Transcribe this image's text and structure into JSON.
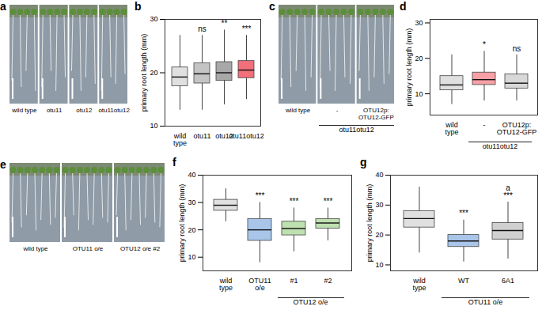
{
  "chart_data": [
    {
      "type": "image",
      "title": "a",
      "labels": [
        "wild type",
        "otu11",
        "otu12",
        "otu11otu12"
      ]
    },
    {
      "type": "box",
      "title": "b",
      "categories": [
        "wild type",
        "otu11",
        "otu12",
        "otu11otu12"
      ],
      "min": [
        13,
        13,
        14,
        15
      ],
      "q1": [
        17.5,
        18,
        18.5,
        19
      ],
      "median": [
        19.2,
        19.8,
        20,
        20.5
      ],
      "q3": [
        21,
        21.8,
        22,
        22.2
      ],
      "max": [
        27,
        27,
        28,
        27
      ],
      "colors": [
        "#e0e0e0",
        "#c4c4c4",
        "#a8a8a8",
        "#f2707a"
      ],
      "ylabel": "primary root length (mm)",
      "ylim": [
        10,
        30
      ],
      "yticks": [
        10,
        20,
        30
      ],
      "annotations": [
        {
          "category": "otu11",
          "text": "ns"
        },
        {
          "category": "otu12",
          "text": "**"
        },
        {
          "category": "otu11otu12",
          "text": "***"
        }
      ]
    },
    {
      "type": "image",
      "title": "c",
      "labels": [
        "wild type",
        "-",
        "OTU12p:OTU12-GFP"
      ],
      "groups": [
        {
          "label": "otu11otu12",
          "categories": [
            "-",
            "OTU12p:OTU12-GFP"
          ]
        }
      ]
    },
    {
      "type": "box",
      "title": "d",
      "categories": [
        "wild type",
        "-",
        "OTU12p:OTU12-GFP"
      ],
      "min": [
        7,
        8,
        8
      ],
      "q1": [
        11,
        12.5,
        11.5
      ],
      "median": [
        12.5,
        14,
        13
      ],
      "q3": [
        15,
        16,
        15.5
      ],
      "max": [
        21,
        22,
        21
      ],
      "colors": [
        "#e0e0e0",
        "#f7a0a6",
        "#d8d8d8"
      ],
      "ylabel": "primary root length (mm)",
      "ylim": [
        4,
        31
      ],
      "yticks": [
        10,
        20,
        30
      ],
      "groups": [
        {
          "label": "otu11otu12",
          "categories": [
            "-",
            "OTU12p:OTU12-GFP"
          ]
        }
      ],
      "annotations": [
        {
          "category": "-",
          "text": "*"
        },
        {
          "category": "OTU12p:OTU12-GFP",
          "text": "ns"
        }
      ]
    },
    {
      "type": "image",
      "title": "e",
      "labels": [
        "wild type",
        "OTU11 o/e",
        "OTU12 o/e #2"
      ]
    },
    {
      "type": "box",
      "title": "f",
      "categories": [
        "wild type",
        "OTU11 o/e",
        "#1",
        "#2"
      ],
      "min": [
        23,
        8,
        12,
        16
      ],
      "q1": [
        27,
        16,
        18,
        20.5
      ],
      "median": [
        29,
        20,
        20.5,
        22.5
      ],
      "q3": [
        31,
        24,
        23,
        24
      ],
      "max": [
        35,
        30,
        28,
        28
      ],
      "colors": [
        "#e0e0e0",
        "#a9c6ea",
        "#bfe0b0",
        "#bfe0b0"
      ],
      "ylabel": "primary root length (mm)",
      "ylim": [
        5,
        40
      ],
      "yticks": [
        10,
        20,
        30,
        40
      ],
      "groups": [
        {
          "label": "OTU12 o/e",
          "categories": [
            "#1",
            "#2"
          ]
        }
      ],
      "annotations": [
        {
          "category": "OTU11 o/e",
          "text": "***"
        },
        {
          "category": "#1",
          "text": "***"
        },
        {
          "category": "#2",
          "text": "***"
        }
      ]
    },
    {
      "type": "box",
      "title": "g",
      "categories": [
        "wild type",
        "WT",
        "6A1"
      ],
      "min": [
        14,
        11,
        12
      ],
      "q1": [
        22.5,
        16,
        18.5
      ],
      "median": [
        25.5,
        18,
        21.5
      ],
      "q3": [
        28,
        20,
        24
      ],
      "max": [
        36,
        25,
        31
      ],
      "colors": [
        "#e0e0e0",
        "#a9c6ea",
        "#d0d0d0"
      ],
      "ylabel": "primary root length (mm)",
      "ylim": [
        8,
        40
      ],
      "yticks": [
        10,
        20,
        30,
        40
      ],
      "groups": [
        {
          "label": "OTU11 o/e",
          "categories": [
            "WT",
            "6A1"
          ]
        }
      ],
      "annotations": [
        {
          "category": "WT",
          "text": "***"
        },
        {
          "category": "6A1",
          "text": "***"
        },
        {
          "category": "6A1",
          "text": "a"
        }
      ]
    }
  ]
}
